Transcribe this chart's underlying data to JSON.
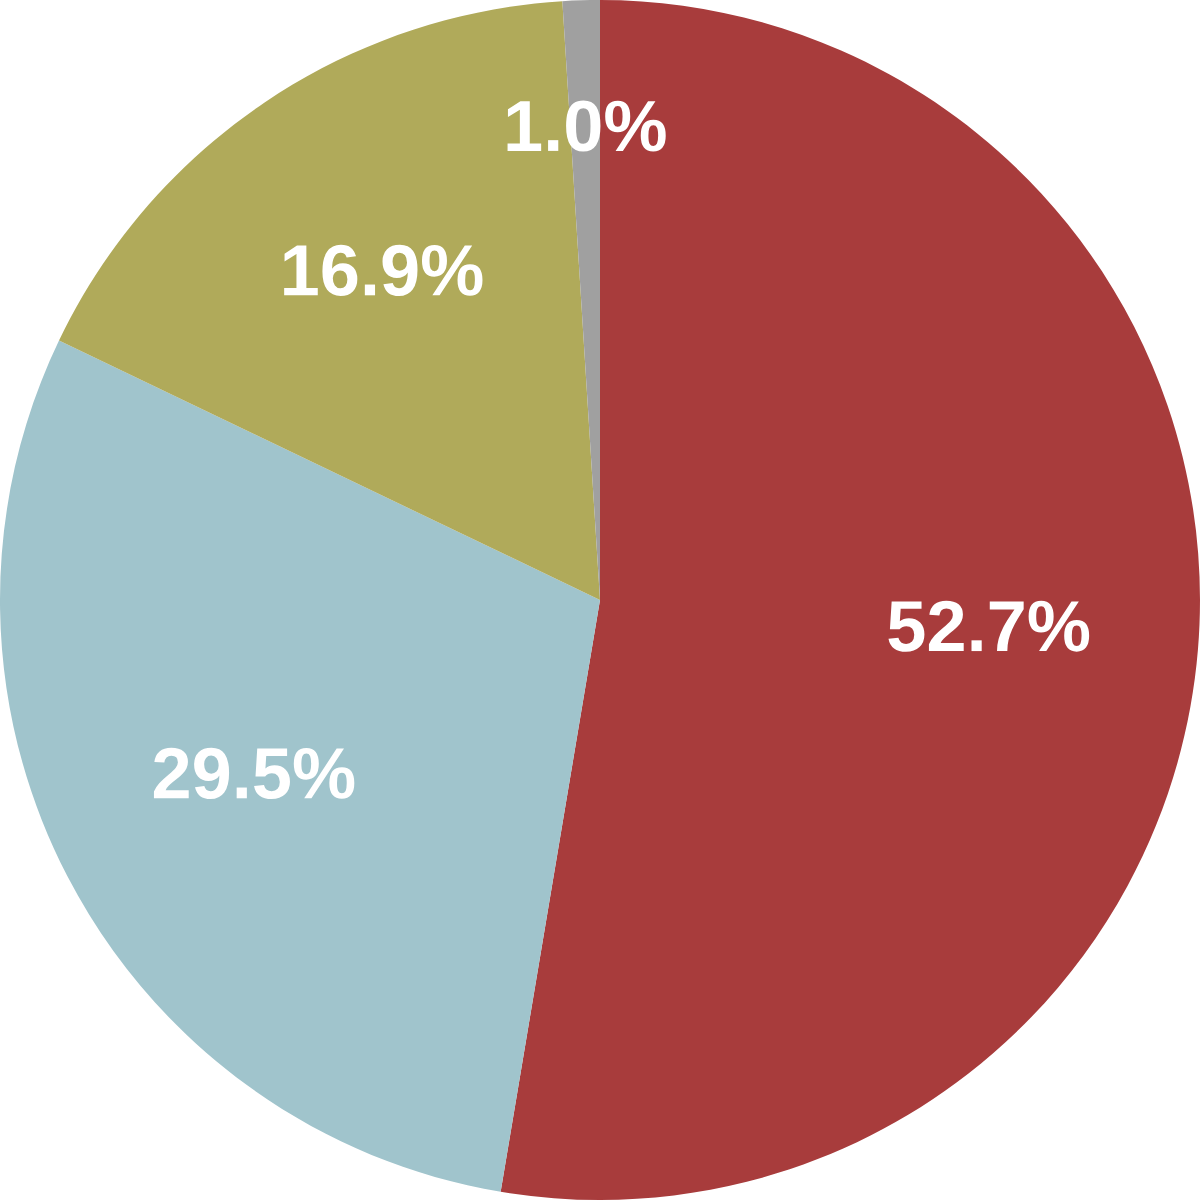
{
  "chart_data": {
    "type": "pie",
    "categories": [
      null,
      null,
      null,
      null
    ],
    "values": [
      52.7,
      29.5,
      16.9,
      1.0
    ],
    "colors": [
      "#a83c3c",
      "#a0c4cc",
      "#b0aa5a",
      "#a0a0a0"
    ],
    "value_labels": [
      "52.7%",
      "29.5%",
      "16.9%",
      "1.0%"
    ]
  }
}
